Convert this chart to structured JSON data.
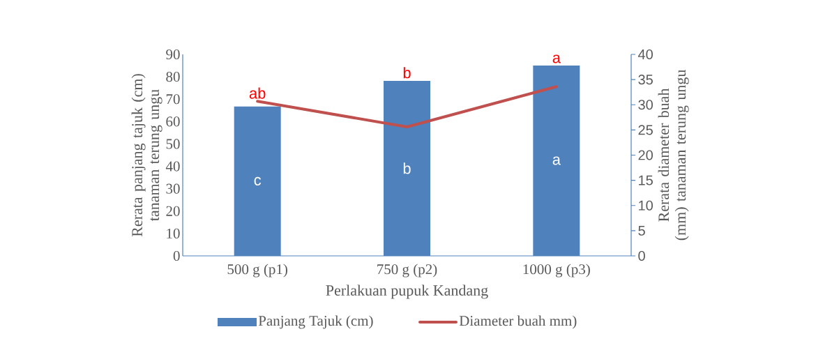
{
  "chart_data": {
    "type": "bar",
    "xlabel": "Perlakuan pupuk Kandang",
    "ylabel": "Rerata panjang tajuk (cm) tanaman terung ungu",
    "y2label": "Rerata diameter buah (mm) tanaman terung ungu",
    "categories": [
      "500 g (p1)",
      "750 g (p2)",
      "1000 g (p3)"
    ],
    "series": [
      {
        "name": "Panjang Tajuk (cm)",
        "color": "#4f81bd",
        "values": [
          66.7,
          78.2,
          85.0
        ]
      },
      {
        "name": "Diameter buah mm)",
        "type": "line",
        "axis": "y2",
        "color": "#c0504d",
        "values": [
          30.7,
          25.6,
          33.6
        ]
      }
    ],
    "ylim": [
      0,
      90
    ],
    "yticks": [
      0,
      10,
      20,
      30,
      40,
      50,
      60,
      70,
      80,
      90
    ],
    "y2lim": [
      0,
      40
    ],
    "y2ticks": [
      0,
      5,
      10,
      15,
      20,
      25,
      30,
      35,
      40
    ],
    "annotations": [
      "ab",
      "b",
      "a",
      "c",
      "b",
      "a"
    ],
    "legend": "bottom",
    "grid": false,
    "marker": "none"
  }
}
